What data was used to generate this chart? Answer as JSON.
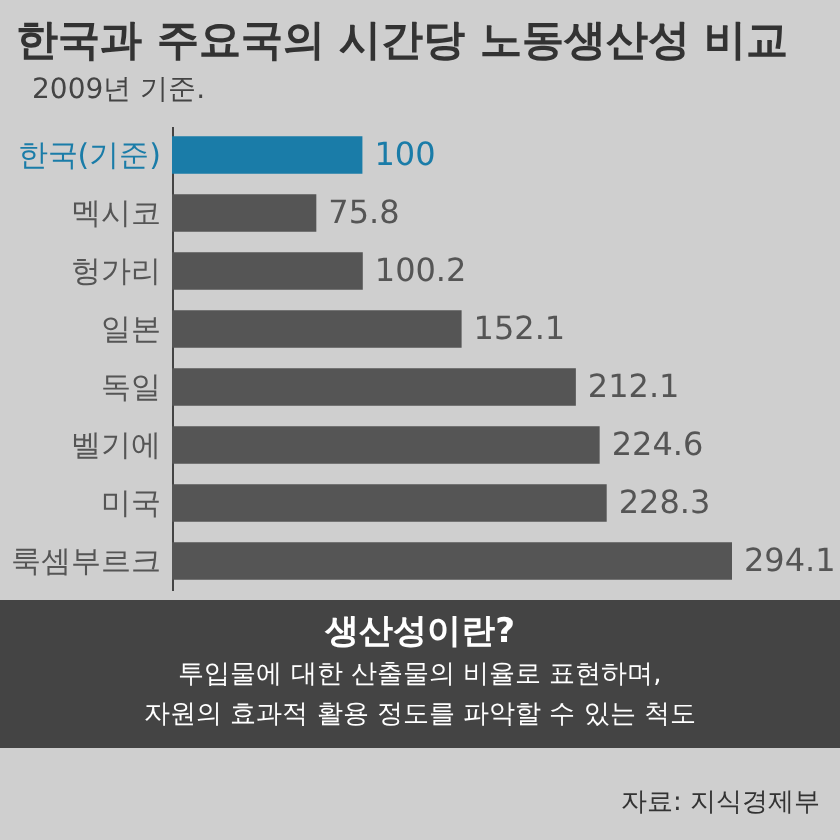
{
  "chart_data": {
    "type": "bar",
    "orientation": "horizontal",
    "title": "한국과 주요국의 시간당 노동생산성 비교",
    "subtitle": "2009년 기준.",
    "categories": [
      "한국(기준)",
      "멕시코",
      "헝가리",
      "일본",
      "독일",
      "벨기에",
      "미국",
      "룩셈부르크"
    ],
    "values": [
      100,
      75.8,
      100.2,
      152.1,
      212.1,
      224.6,
      228.3,
      294.1
    ],
    "colors": [
      "#1a7ca8",
      "#555555",
      "#555555",
      "#555555",
      "#555555",
      "#555555",
      "#555555",
      "#555555"
    ],
    "data_labels": true,
    "annotations": [
      "생산성이란?",
      "투입물에 대한 산출물의 비율로 표현하며,",
      "자원의 효과적 활용 정도를 파악할 수 있는 척도",
      "자료: 지식경제부"
    ]
  }
}
